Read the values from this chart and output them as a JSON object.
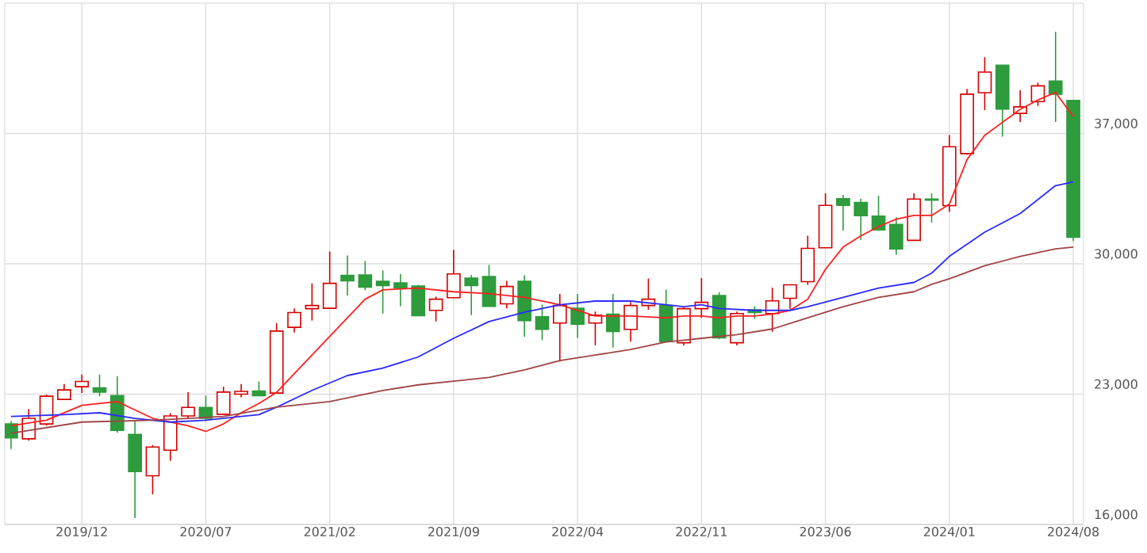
{
  "chart_data": {
    "type": "candlestick",
    "x": [
      "2019-08",
      "2019-09",
      "2019-10",
      "2019-11",
      "2019-12",
      "2020-01",
      "2020-02",
      "2020-03",
      "2020-04",
      "2020-05",
      "2020-06",
      "2020-07",
      "2020-08",
      "2020-09",
      "2020-10",
      "2020-11",
      "2020-12",
      "2021-01",
      "2021-02",
      "2021-03",
      "2021-04",
      "2021-05",
      "2021-06",
      "2021-07",
      "2021-08",
      "2021-09",
      "2021-10",
      "2021-11",
      "2021-12",
      "2022-01",
      "2022-02",
      "2022-03",
      "2022-04",
      "2022-05",
      "2022-06",
      "2022-07",
      "2022-08",
      "2022-09",
      "2022-10",
      "2022-11",
      "2022-12",
      "2023-01",
      "2023-02",
      "2023-03",
      "2023-04",
      "2023-05",
      "2023-06",
      "2023-07",
      "2023-08",
      "2023-09",
      "2023-10",
      "2023-11",
      "2023-12",
      "2024-01",
      "2024-02",
      "2024-03",
      "2024-04",
      "2024-05",
      "2024-06",
      "2024-07",
      "2024-08"
    ],
    "ohlc": [
      [
        21400,
        21550,
        20050,
        20650
      ],
      [
        20600,
        22200,
        20500,
        21700
      ],
      [
        21400,
        22980,
        21300,
        22890
      ],
      [
        22720,
        23540,
        22720,
        23230
      ],
      [
        23400,
        24050,
        23060,
        23680
      ],
      [
        23340,
        24050,
        22890,
        23110
      ],
      [
        22920,
        23970,
        20930,
        21060
      ],
      [
        20840,
        21550,
        16340,
        18840
      ],
      [
        18620,
        20270,
        17620,
        20160
      ],
      [
        19990,
        21980,
        19420,
        21830
      ],
      [
        21830,
        23110,
        21700,
        22290
      ],
      [
        22290,
        22920,
        21550,
        21700
      ],
      [
        21920,
        23400,
        21920,
        23110
      ],
      [
        23000,
        23540,
        22830,
        23150
      ],
      [
        23170,
        23680,
        22890,
        22920
      ],
      [
        23060,
        26820,
        23060,
        26390
      ],
      [
        26590,
        27610,
        26310,
        27380
      ],
      [
        27590,
        28950,
        26950,
        27760
      ],
      [
        27610,
        30660,
        27610,
        28950
      ],
      [
        29380,
        30450,
        28300,
        29090
      ],
      [
        29400,
        30150,
        28580,
        28750
      ],
      [
        29060,
        29640,
        27330,
        28830
      ],
      [
        28980,
        29460,
        27720,
        28720
      ],
      [
        28810,
        28870,
        27210,
        27210
      ],
      [
        27500,
        28240,
        26900,
        28100
      ],
      [
        28180,
        30740,
        28180,
        29460
      ],
      [
        29230,
        29400,
        27240,
        28830
      ],
      [
        29320,
        29940,
        27720,
        27720
      ],
      [
        27850,
        29090,
        27610,
        28780
      ],
      [
        29060,
        29380,
        26080,
        26950
      ],
      [
        27160,
        27810,
        25900,
        26480
      ],
      [
        26820,
        28380,
        24740,
        27760
      ],
      [
        27610,
        28380,
        26020,
        26760
      ],
      [
        26820,
        27440,
        25620,
        27240
      ],
      [
        27300,
        28380,
        25500,
        26360
      ],
      [
        26480,
        27950,
        25820,
        27760
      ],
      [
        27760,
        29210,
        27530,
        28100
      ],
      [
        27760,
        28610,
        25820,
        25820
      ],
      [
        25760,
        27650,
        25620,
        27590
      ],
      [
        27590,
        29230,
        27100,
        27930
      ],
      [
        28300,
        28470,
        25960,
        26020
      ],
      [
        25760,
        27440,
        25620,
        27330
      ],
      [
        27530,
        27720,
        27040,
        27380
      ],
      [
        27330,
        28720,
        26350,
        28010
      ],
      [
        28150,
        28870,
        27590,
        28870
      ],
      [
        29040,
        31510,
        28870,
        30830
      ],
      [
        30860,
        33790,
        30860,
        33140
      ],
      [
        33500,
        33700,
        31790,
        33140
      ],
      [
        33300,
        33500,
        31280,
        32590
      ],
      [
        32560,
        33650,
        31770,
        31820
      ],
      [
        32110,
        32500,
        30490,
        30800
      ],
      [
        31260,
        33790,
        31260,
        33480
      ],
      [
        33480,
        33790,
        32220,
        33420
      ],
      [
        33130,
        36910,
        32790,
        36290
      ],
      [
        35920,
        39390,
        35860,
        39110
      ],
      [
        39190,
        41100,
        38250,
        40300
      ],
      [
        40670,
        40670,
        36830,
        38310
      ],
      [
        38080,
        39330,
        37620,
        38430
      ],
      [
        38710,
        39730,
        38480,
        39560
      ],
      [
        39820,
        42460,
        37620,
        39110
      ],
      [
        38770,
        38770,
        31220,
        31430
      ]
    ],
    "colors": [
      "#2e9b3c",
      "#d40000",
      "#d40000",
      "#d40000",
      "#d40000",
      "#2e9b3c",
      "#2e9b3c",
      "#2e9b3c",
      "#d40000",
      "#d40000",
      "#d40000",
      "#2e9b3c",
      "#d40000",
      "#d40000",
      "#2e9b3c",
      "#d40000",
      "#d40000",
      "#d40000",
      "#d40000",
      "#2e9b3c",
      "#2e9b3c",
      "#2e9b3c",
      "#2e9b3c",
      "#2e9b3c",
      "#d40000",
      "#d40000",
      "#2e9b3c",
      "#2e9b3c",
      "#d40000",
      "#2e9b3c",
      "#2e9b3c",
      "#d40000",
      "#2e9b3c",
      "#d40000",
      "#2e9b3c",
      "#d40000",
      "#d40000",
      "#2e9b3c",
      "#d40000",
      "#d40000",
      "#2e9b3c",
      "#d40000",
      "#2e9b3c",
      "#d40000",
      "#d40000",
      "#d40000",
      "#d40000",
      "#2e9b3c",
      "#2e9b3c",
      "#2e9b3c",
      "#2e9b3c",
      "#d40000",
      "#2e9b3c",
      "#d40000",
      "#d40000",
      "#d40000",
      "#2e9b3c",
      "#d40000",
      "#d40000",
      "#2e9b3c",
      "#2e9b3c"
    ],
    "series": [
      {
        "type": "line",
        "color": "#ff2020",
        "x": [
          "2019-08",
          "2019-10",
          "2019-12",
          "2020-02",
          "2020-04",
          "2020-06",
          "2020-07",
          "2020-08",
          "2020-09",
          "2020-10",
          "2020-11",
          "2021-02",
          "2021-04",
          "2021-05",
          "2021-07",
          "2021-09",
          "2021-11",
          "2022-01",
          "2022-03",
          "2022-05",
          "2022-07",
          "2022-09",
          "2022-10",
          "2022-11",
          "2022-12",
          "2023-01",
          "2023-02",
          "2023-03",
          "2023-04",
          "2023-05",
          "2023-06",
          "2023-07",
          "2023-08",
          "2023-09",
          "2023-10",
          "2023-11",
          "2023-12",
          "2024-01",
          "2024-02",
          "2024-03",
          "2024-04",
          "2024-05",
          "2024-06",
          "2024-07",
          "2024-08"
        ],
        "values": [
          21300,
          21600,
          22400,
          22600,
          21700,
          21300,
          21000,
          21400,
          22000,
          22500,
          23100,
          26100,
          28100,
          28600,
          28700,
          28500,
          28400,
          28200,
          27800,
          27200,
          27200,
          27100,
          27200,
          27200,
          27100,
          27200,
          27200,
          27300,
          27500,
          28100,
          29700,
          30900,
          31500,
          32000,
          32400,
          32600,
          32600,
          33200,
          35600,
          36900,
          37600,
          38300,
          38800,
          39200,
          37900
        ]
      },
      {
        "type": "line",
        "color": "#2a2aff",
        "x": [
          "2019-08",
          "2019-11",
          "2020-01",
          "2020-03",
          "2020-05",
          "2020-07",
          "2020-09",
          "2020-10",
          "2020-11",
          "2021-01",
          "2021-03",
          "2021-05",
          "2021-07",
          "2021-09",
          "2021-11",
          "2022-01",
          "2022-03",
          "2022-05",
          "2022-07",
          "2022-09",
          "2022-10",
          "2022-11",
          "2022-12",
          "2023-02",
          "2023-04",
          "2023-05",
          "2023-07",
          "2023-09",
          "2023-11",
          "2023-12",
          "2024-01",
          "2024-03",
          "2024-05",
          "2024-07",
          "2024-08"
        ],
        "values": [
          21800,
          21900,
          22000,
          21700,
          21500,
          21600,
          21800,
          21900,
          22300,
          23200,
          24000,
          24400,
          25000,
          26000,
          26900,
          27400,
          27800,
          28000,
          28000,
          27800,
          27700,
          27800,
          27600,
          27500,
          27500,
          27700,
          28200,
          28700,
          29000,
          29500,
          30400,
          31700,
          32700,
          34200,
          34400
        ]
      },
      {
        "type": "line",
        "color": "#a04444",
        "x": [
          "2019-08",
          "2019-12",
          "2020-04",
          "2020-08",
          "2020-11",
          "2021-02",
          "2021-05",
          "2021-07",
          "2021-09",
          "2021-11",
          "2022-01",
          "2022-03",
          "2022-05",
          "2022-07",
          "2022-09",
          "2022-10",
          "2022-11",
          "2023-01",
          "2023-03",
          "2023-05",
          "2023-07",
          "2023-09",
          "2023-11",
          "2023-12",
          "2024-01",
          "2024-03",
          "2024-05",
          "2024-07",
          "2024-08"
        ],
        "values": [
          20900,
          21500,
          21600,
          21800,
          22300,
          22600,
          23200,
          23500,
          23700,
          23900,
          24300,
          24800,
          25100,
          25400,
          25800,
          25900,
          26000,
          26200,
          26500,
          27100,
          27700,
          28200,
          28500,
          28900,
          29200,
          29900,
          30400,
          30800,
          30900
        ]
      }
    ],
    "xlim": [
      "2019-07-21",
      "2024-08-19"
    ],
    "xticks": [
      {
        "value": "2019-12",
        "label": "2019/12"
      },
      {
        "value": "2020-07",
        "label": "2020/07"
      },
      {
        "value": "2021-02",
        "label": "2021/02"
      },
      {
        "value": "2021-09",
        "label": "2021/09"
      },
      {
        "value": "2022-04",
        "label": "2022/04"
      },
      {
        "value": "2022-11",
        "label": "2022/11"
      },
      {
        "value": "2023-06",
        "label": "2023/06"
      },
      {
        "value": "2024-01",
        "label": "2024/01"
      },
      {
        "value": "2024-08",
        "label": "2024/08"
      }
    ],
    "ylim": [
      16000,
      44000
    ],
    "yticks": [
      {
        "value": 16000,
        "label": "16,000"
      },
      {
        "value": 23000,
        "label": "23,000"
      },
      {
        "value": 30000,
        "label": "30,000"
      },
      {
        "value": 37000,
        "label": "37,000"
      }
    ],
    "grid": true
  }
}
